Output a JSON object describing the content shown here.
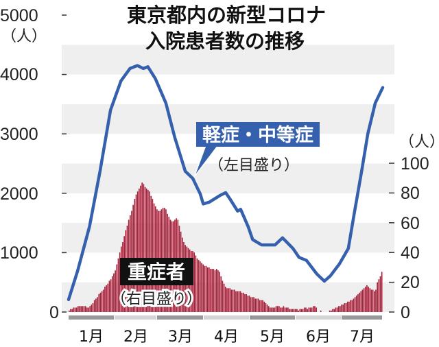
{
  "chart_data": {
    "type": "bar+line",
    "title": [
      "東京都内の新型コロナ",
      "入院患者数の推移"
    ],
    "x_months": [
      "1月",
      "2月",
      "3月",
      "4月",
      "5月",
      "6月",
      "7月"
    ],
    "left_axis": {
      "unit": "（人）",
      "range": [
        0,
        5000
      ],
      "ticks": [
        "5000",
        "4000",
        "3000",
        "2000",
        "1000",
        "0"
      ]
    },
    "right_axis": {
      "unit": "（人）",
      "range": [
        0,
        100
      ],
      "ticks": [
        "100",
        "80",
        "60",
        "40",
        "20",
        "0"
      ]
    },
    "grid": "alternating bands every 500 (left axis)",
    "series": [
      {
        "name": "軽症・中等症",
        "note": "（左目盛り）",
        "type": "line",
        "axis": "left",
        "color": "#3560ad",
        "points_day_value": [
          [
            0,
            210
          ],
          [
            6,
            690
          ],
          [
            14,
            1440
          ],
          [
            21,
            2370
          ],
          [
            28,
            3400
          ],
          [
            35,
            3890
          ],
          [
            41,
            4100
          ],
          [
            46,
            4150
          ],
          [
            50,
            4100
          ],
          [
            53,
            4130
          ],
          [
            58,
            3930
          ],
          [
            65,
            3520
          ],
          [
            71,
            2940
          ],
          [
            78,
            2370
          ],
          [
            83,
            2250
          ],
          [
            88,
            1990
          ],
          [
            90,
            1820
          ],
          [
            94,
            1850
          ],
          [
            101,
            1960
          ],
          [
            105,
            2010
          ],
          [
            108,
            1900
          ],
          [
            113,
            1700
          ],
          [
            115,
            1730
          ],
          [
            120,
            1440
          ],
          [
            123,
            1220
          ],
          [
            129,
            1130
          ],
          [
            138,
            1130
          ],
          [
            143,
            1250
          ],
          [
            150,
            1070
          ],
          [
            154,
            920
          ],
          [
            159,
            870
          ],
          [
            166,
            640
          ],
          [
            171,
            520
          ],
          [
            175,
            610
          ],
          [
            181,
            810
          ],
          [
            187,
            1070
          ],
          [
            191,
            1670
          ],
          [
            196,
            2390
          ],
          [
            200,
            3000
          ],
          [
            205,
            3520
          ],
          [
            210,
            3780
          ]
        ]
      },
      {
        "name": "重症者",
        "note": "（右目盛り）",
        "type": "bar",
        "axis": "right",
        "color": "#a8213a",
        "daily_values": [
          1,
          2,
          2,
          3,
          3,
          3,
          4,
          4,
          4,
          4,
          4,
          4,
          3,
          3,
          4,
          5,
          6,
          8,
          9,
          10,
          12,
          13,
          14,
          15,
          17,
          18,
          19,
          21,
          22,
          24,
          26,
          28,
          32,
          36,
          40,
          44,
          47,
          51,
          55,
          58,
          62,
          65,
          68,
          72,
          76,
          79,
          81,
          83,
          85,
          87,
          86,
          84,
          83,
          82,
          81,
          78,
          76,
          73,
          71,
          69,
          68,
          68,
          69,
          70,
          70,
          69,
          66,
          64,
          62,
          61,
          61,
          62,
          63,
          62,
          58,
          54,
          50,
          47,
          45,
          44,
          43,
          42,
          41,
          41,
          40,
          38,
          36,
          35,
          34,
          33,
          32,
          31,
          31,
          30,
          30,
          29,
          29,
          29,
          28,
          29,
          28,
          27,
          24,
          21,
          19,
          17,
          16,
          16,
          16,
          15,
          15,
          15,
          14,
          14,
          14,
          14,
          13,
          13,
          12,
          12,
          11,
          11,
          10,
          10,
          10,
          9,
          9,
          9,
          8,
          8,
          8,
          7,
          6,
          5,
          4,
          3,
          3,
          3,
          3,
          4,
          4,
          4,
          3,
          3,
          4,
          3,
          3,
          3,
          2,
          2,
          2,
          2,
          2,
          2,
          1,
          2,
          2,
          2,
          3,
          3,
          2,
          3,
          3,
          3,
          4,
          4,
          3,
          0,
          0,
          1,
          0,
          0,
          0,
          0,
          0,
          1,
          1,
          2,
          2,
          3,
          3,
          4,
          4,
          5,
          5,
          6,
          6,
          7,
          7,
          8,
          8,
          9,
          10,
          11,
          12,
          13,
          14,
          15,
          16,
          17,
          18,
          17,
          16,
          15,
          15,
          14,
          15,
          20,
          22,
          24,
          27
        ]
      }
    ]
  }
}
